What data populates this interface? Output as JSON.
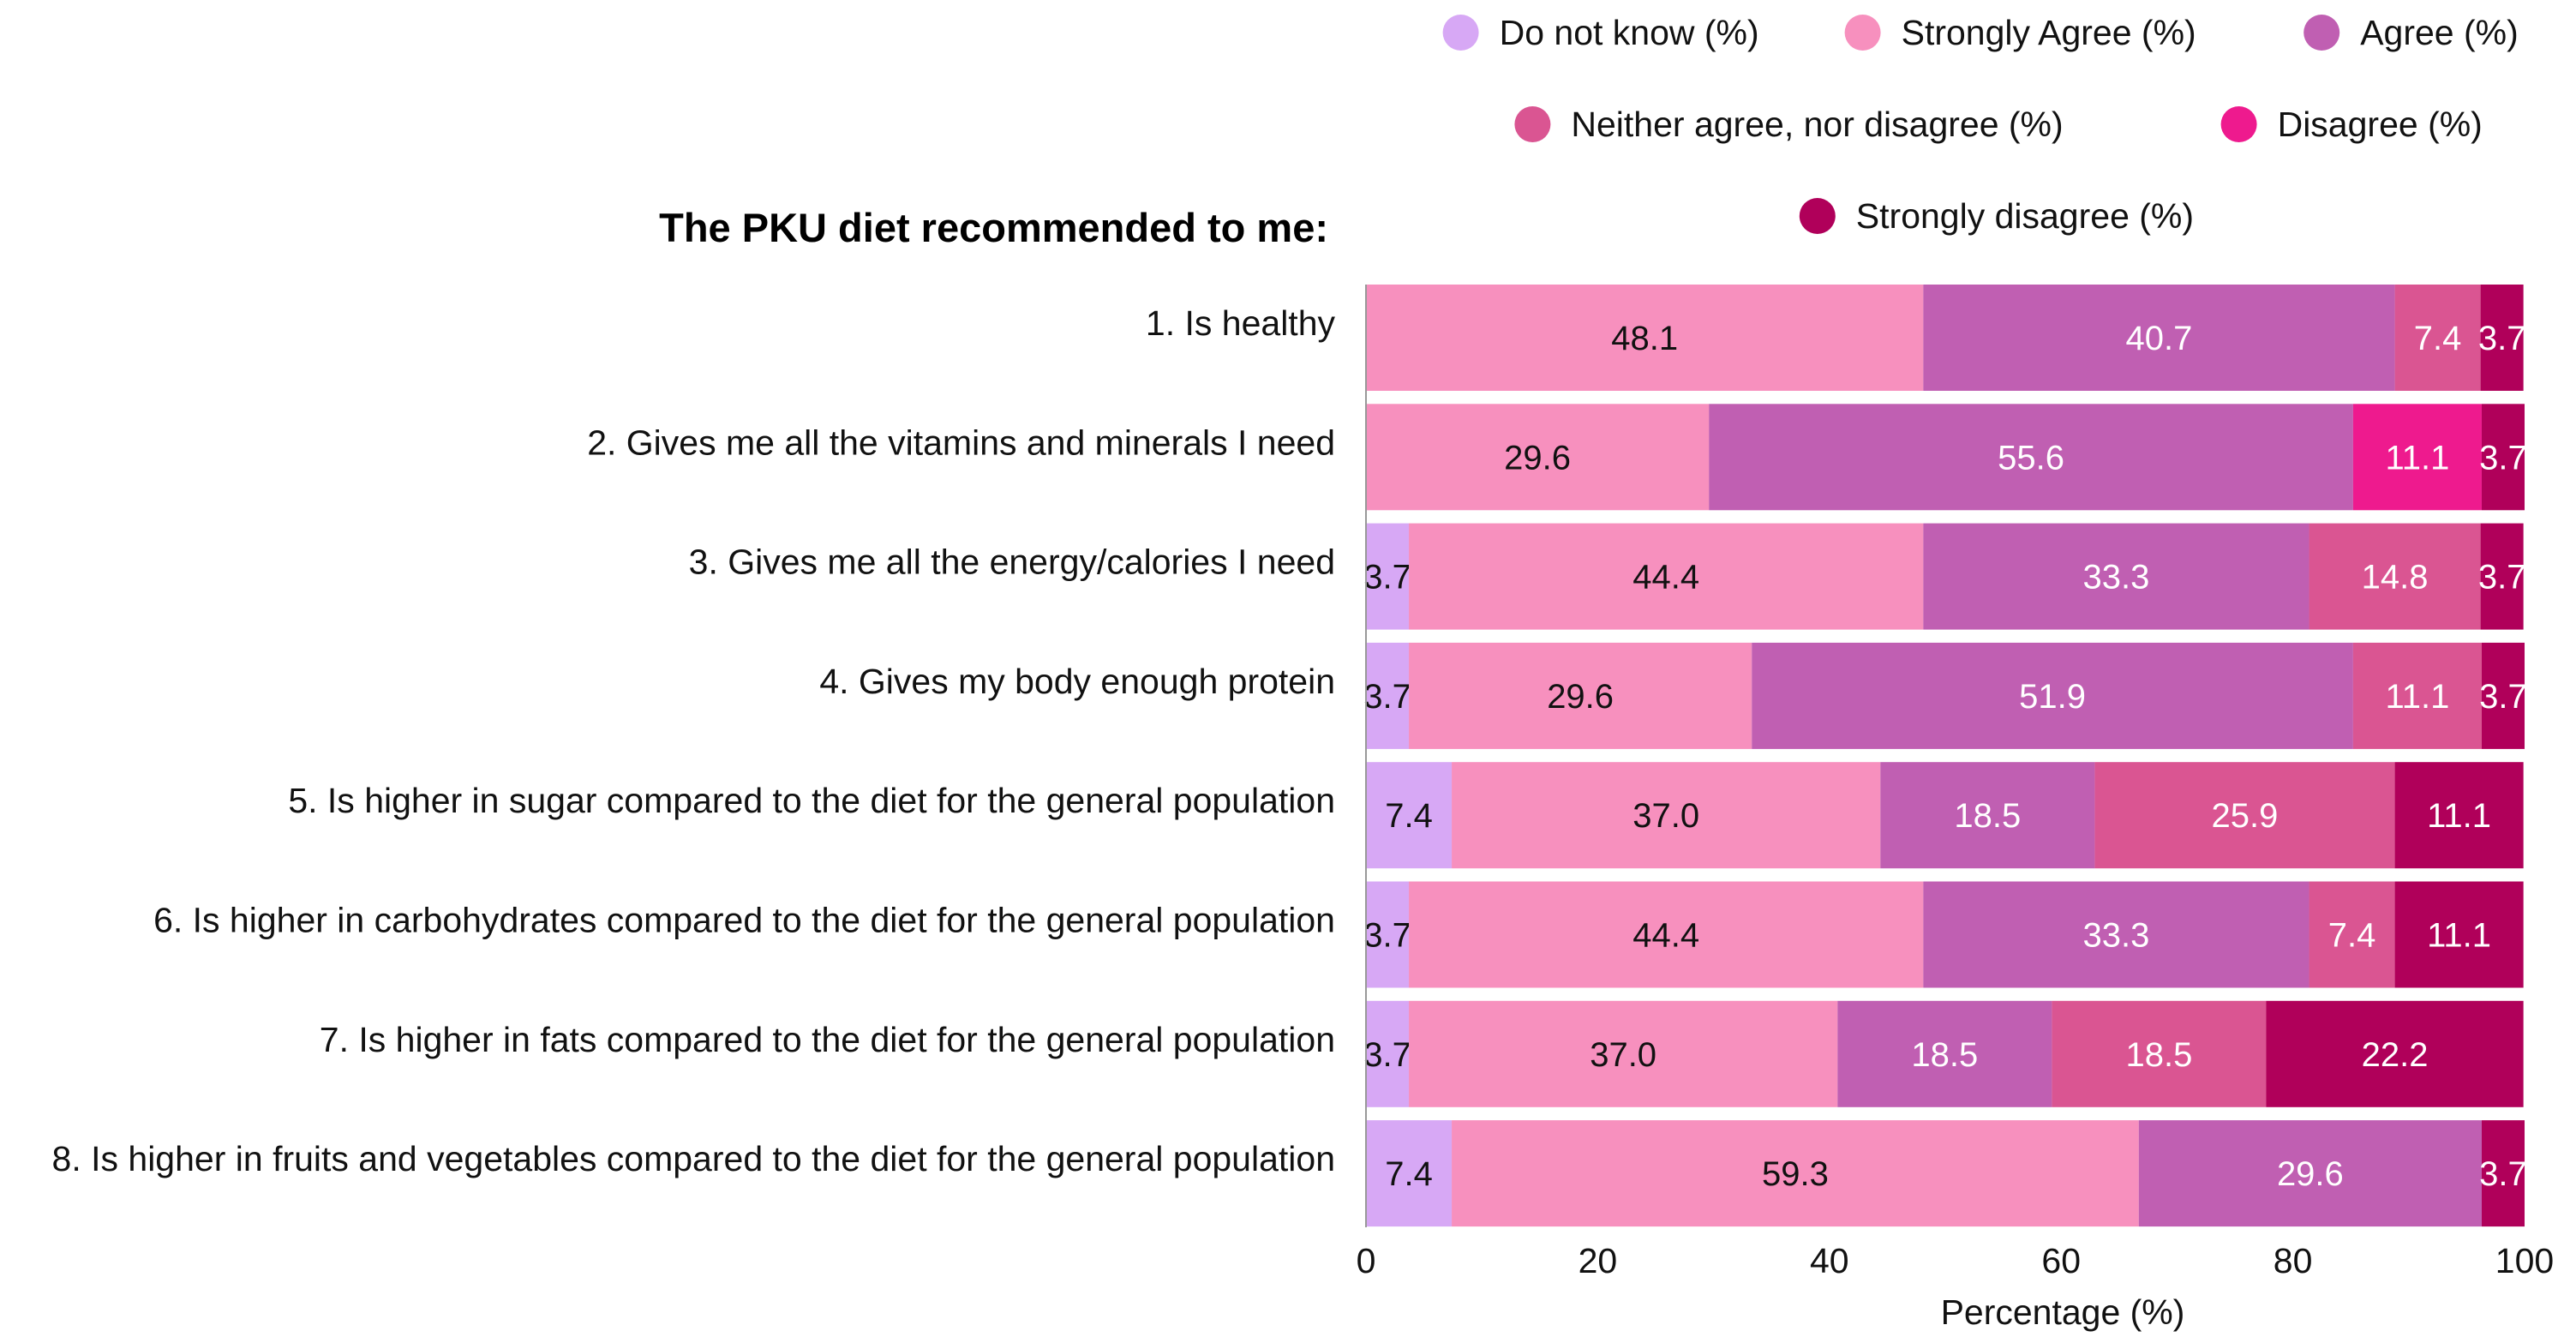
{
  "chart_data": {
    "type": "bar",
    "orientation": "horizontal",
    "stacked": true,
    "title": "The PKU diet recommended to me:",
    "xlabel": "Percentage (%)",
    "ylabel": "",
    "xlim": [
      0,
      100
    ],
    "xticks": [
      "0",
      "20",
      "40",
      "60",
      "80",
      "100"
    ],
    "grid": false,
    "legend_position": "top-right",
    "categories": [
      "1. Is healthy",
      "2. Gives me all the vitamins and minerals I need",
      "3. Gives me all the energy/calories I need",
      "4. Gives my body enough protein",
      "5. Is higher in sugar compared to the diet for the general population",
      "6. Is higher in carbohydrates compared to the diet for the general population",
      "7. Is higher in fats compared to the diet for the general population",
      "8. Is higher in fruits and vegetables compared to the diet for the general population"
    ],
    "series": [
      {
        "name": "Do not know (%)",
        "color": "#d7a8f5",
        "label_color": "#111111",
        "values": [
          0,
          0,
          3.7,
          3.7,
          7.4,
          3.7,
          3.7,
          7.4
        ],
        "labels": [
          "",
          "",
          "3.7",
          "3.7",
          "7.4",
          "3.7",
          "3.7",
          "7.4"
        ]
      },
      {
        "name": "Strongly Agree (%)",
        "color": "#f790be",
        "label_color": "#111111",
        "values": [
          48.1,
          29.6,
          44.4,
          29.6,
          37.0,
          44.4,
          37.0,
          59.3
        ],
        "labels": [
          "48.1",
          "29.6",
          "44.4",
          "29.6",
          "37.0",
          "44.4",
          "37.0",
          "59.3"
        ]
      },
      {
        "name": "Agree (%)",
        "color": "#c05fb2",
        "label_color": "#ffffff",
        "values": [
          40.7,
          55.6,
          33.3,
          51.9,
          18.5,
          33.3,
          18.5,
          29.6
        ],
        "labels": [
          "40.7",
          "55.6",
          "33.3",
          "51.9",
          "18.5",
          "33.3",
          "18.5",
          "29.6"
        ]
      },
      {
        "name": "Neither agree, nor disagree (%)",
        "color": "#da5592",
        "label_color": "#ffffff",
        "values": [
          7.4,
          0,
          14.8,
          11.1,
          25.9,
          7.4,
          18.5,
          0
        ],
        "labels": [
          "7.4",
          "",
          "14.8",
          "11.1",
          "25.9",
          "7.4",
          "18.5",
          ""
        ]
      },
      {
        "name": "Disagree (%)",
        "color": "#ee1a8e",
        "label_color": "#ffffff",
        "values": [
          0,
          11.1,
          0,
          0,
          0,
          0,
          0,
          0
        ],
        "labels": [
          "",
          "11.1",
          "",
          "",
          "",
          "",
          "",
          ""
        ]
      },
      {
        "name": "Strongly disagree (%)",
        "color": "#b0005a",
        "label_color": "#ffffff",
        "values": [
          3.7,
          3.7,
          3.7,
          3.7,
          11.1,
          11.1,
          22.2,
          3.7
        ],
        "labels": [
          "3.7",
          "3.7",
          "3.7",
          "3.7",
          "11.1",
          "11.1",
          "22.2",
          "3.7"
        ]
      }
    ]
  }
}
